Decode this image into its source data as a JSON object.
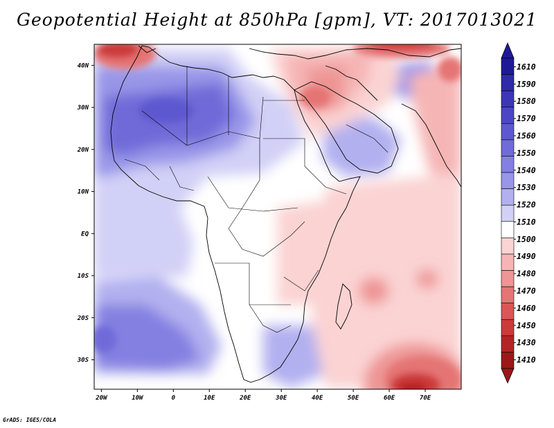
{
  "title": "Geopotential Height at 850hPa [gpm], VT: 2017013021",
  "credit": "GrADS: IGES/COLA",
  "map": {
    "lon_range": [
      -22,
      80
    ],
    "lat_range": [
      -37,
      45
    ],
    "lon_ticks": [
      "20W",
      "10W",
      "0",
      "10E",
      "20E",
      "30E",
      "40E",
      "50E",
      "60E",
      "70E"
    ],
    "lat_ticks": [
      "40N",
      "30N",
      "20N",
      "10N",
      "EQ",
      "10S",
      "20S",
      "30S"
    ]
  },
  "colorbar": {
    "labels": [
      "1610",
      "1590",
      "1580",
      "1570",
      "1560",
      "1550",
      "1540",
      "1530",
      "1520",
      "1510",
      "1500",
      "1490",
      "1480",
      "1470",
      "1460",
      "1450",
      "1430",
      "1410"
    ],
    "colors": [
      "#1e1a96",
      "#2f2aa8",
      "#3d37b8",
      "#4c46c4",
      "#5d58cf",
      "#6f6bd8",
      "#8480e1",
      "#9996e8",
      "#b2b0ef",
      "#d1d0f6",
      "#ffffff",
      "#fbd3d3",
      "#f6b5b5",
      "#ee9595",
      "#e57575",
      "#da5656",
      "#cc3a3a",
      "#b52424",
      "#9c1818"
    ]
  },
  "icons": {
    "top_arrow": "triangle-up-icon",
    "bottom_arrow": "triangle-down-icon"
  }
}
